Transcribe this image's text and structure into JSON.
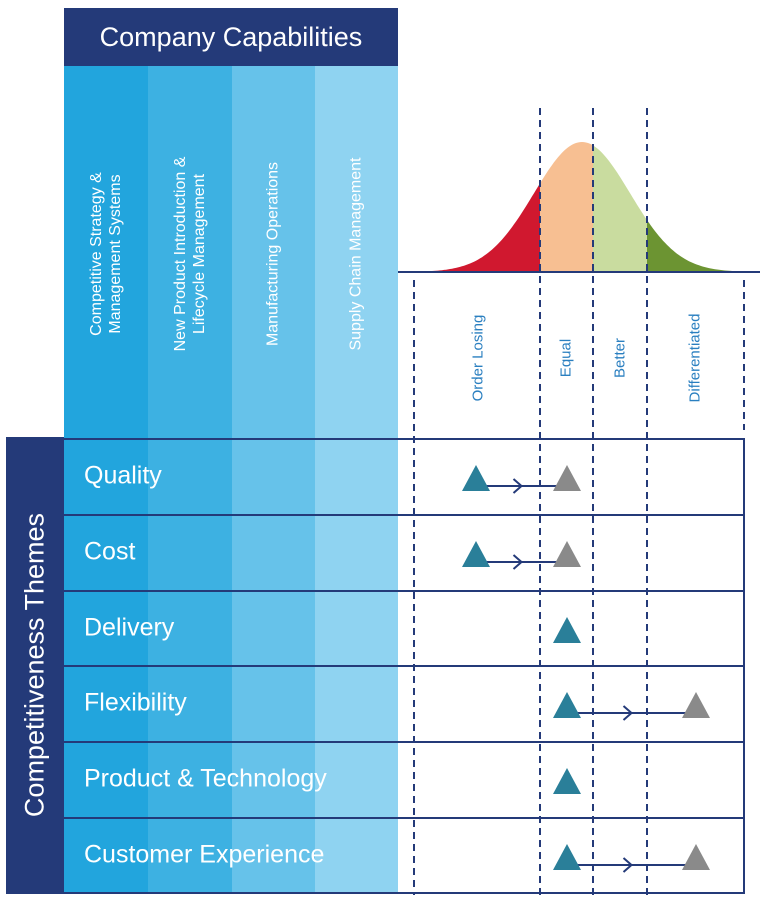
{
  "header": {
    "title": "Company Capabilities"
  },
  "columns": [
    {
      "label": "Competitive Strategy &\nManagement Systems",
      "color": "#22a5dd"
    },
    {
      "label": "New Product Introduction &\nLifecycle Management",
      "color": "#3db1e2"
    },
    {
      "label": "Manufacturing Operations",
      "color": "#66c2ea"
    },
    {
      "label": "Supply Chain Management",
      "color": "#8fd3f1"
    }
  ],
  "side": {
    "title": "Competitiveness Themes"
  },
  "ratings": [
    "Order Losing",
    "Equal",
    "Better",
    "Differentiated"
  ],
  "rows": [
    {
      "label": "Quality",
      "from": "Order Losing",
      "to": "Equal"
    },
    {
      "label": "Cost",
      "from": "Order Losing",
      "to": "Equal"
    },
    {
      "label": "Delivery",
      "from": "Equal",
      "to": null
    },
    {
      "label": "Flexibility",
      "from": "Equal",
      "to": "Differentiated"
    },
    {
      "label": "Product & Technology",
      "from": "Equal",
      "to": null
    },
    {
      "label": "Customer Experience",
      "from": "Equal",
      "to": "Differentiated"
    }
  ],
  "colors": {
    "navy": "#243a79",
    "rating_text": "#2a7fc0",
    "current_marker": "#2a7f99",
    "target_marker": "#8a8a8a",
    "curve_order_losing": "#d0182f",
    "curve_equal": "#f7bf92",
    "curve_better": "#c9dc9f",
    "curve_differentiated": "#6c9432"
  },
  "icons": {
    "current": "triangle-icon",
    "target": "triangle-icon",
    "arrow": "arrow-right-icon"
  }
}
